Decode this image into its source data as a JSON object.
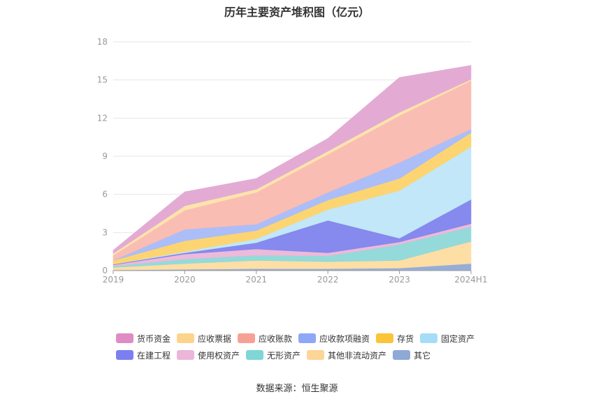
{
  "title": "历年主要资产堆积图（亿元）",
  "source_text": "数据来源：恒生聚源",
  "chart_data": {
    "type": "area",
    "stacked": true,
    "title": "历年主要资产堆积图（亿元）",
    "xlabel": "",
    "ylabel": "",
    "ylim": [
      0,
      18
    ],
    "yticks": [
      "0",
      "3",
      "6",
      "9",
      "12",
      "15",
      "18"
    ],
    "categories": [
      "2019",
      "2020",
      "2021",
      "2022",
      "2023",
      "2024H1"
    ],
    "grid": true,
    "legend_position": "bottom",
    "series": [
      {
        "name": "其它",
        "color": "#8fa9d6",
        "values": [
          0.05,
          0.1,
          0.15,
          0.15,
          0.2,
          0.55
        ]
      },
      {
        "name": "其他非流动资产",
        "color": "#fddca0",
        "values": [
          0.2,
          0.45,
          0.65,
          0.55,
          0.6,
          1.75
        ]
      },
      {
        "name": "无形资产",
        "color": "#8ed8d8",
        "values": [
          0.1,
          0.35,
          0.4,
          0.45,
          1.25,
          1.15
        ]
      },
      {
        "name": "使用权资产",
        "color": "#ebb6d8",
        "values": [
          0.1,
          0.4,
          0.5,
          0.25,
          0.2,
          0.25
        ]
      },
      {
        "name": "在建工程",
        "color": "#7f83ec",
        "values": [
          0.05,
          0.1,
          0.5,
          2.55,
          0.3,
          1.9
        ]
      },
      {
        "name": "固定资产",
        "color": "#bfe6f8",
        "values": [
          0.0,
          0.1,
          0.3,
          0.85,
          3.75,
          4.15
        ]
      },
      {
        "name": "存货",
        "color": "#fcd36a",
        "values": [
          0.3,
          0.85,
          0.65,
          0.75,
          0.95,
          1.1
        ]
      },
      {
        "name": "应收款项融资",
        "color": "#a8bbf8",
        "values": [
          0.0,
          0.9,
          0.5,
          0.6,
          1.25,
          0.3
        ]
      },
      {
        "name": "应收账款",
        "color": "#fab9b0",
        "values": [
          0.4,
          1.5,
          2.5,
          3.0,
          3.7,
          3.8
        ]
      },
      {
        "name": "应收票据",
        "color": "#fde3a8",
        "values": [
          0.15,
          0.35,
          0.25,
          0.25,
          0.25,
          0.1
        ]
      },
      {
        "name": "货币资金",
        "color": "#e2a7d2",
        "values": [
          0.25,
          1.1,
          0.85,
          1.0,
          2.75,
          1.1
        ]
      }
    ]
  },
  "legend": [
    [
      {
        "label": "货币资金",
        "color": "#de8cc6"
      },
      {
        "label": "应收票据",
        "color": "#fdd48c"
      },
      {
        "label": "应收账款",
        "color": "#f7a196"
      },
      {
        "label": "应收款项融资",
        "color": "#8ea7f7"
      },
      {
        "label": "存货",
        "color": "#fbc43a"
      },
      {
        "label": "固定资产",
        "color": "#a6dcf8"
      }
    ],
    [
      {
        "label": "在建工程",
        "color": "#7b7ff2"
      },
      {
        "label": "使用权资产",
        "color": "#ebb6d8"
      },
      {
        "label": "无形资产",
        "color": "#7fd6d6"
      },
      {
        "label": "其他非流动资产",
        "color": "#fdd596"
      },
      {
        "label": "其它",
        "color": "#8fa9d6"
      }
    ]
  ]
}
